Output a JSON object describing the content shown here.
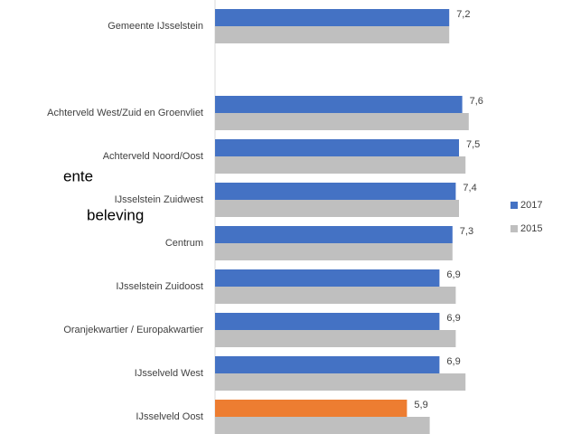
{
  "chart_data": {
    "type": "bar",
    "orientation": "horizontal",
    "fragments": [
      "ente",
      "beleving"
    ],
    "categories": [
      "Gemeente IJsselstein",
      "Achterveld West/Zuid en Groenvliet",
      "Achterveld  Noord/Oost",
      "IJsselstein Zuidwest",
      "Centrum",
      "IJsselstein Zuidoost",
      "Oranjekwartier / Europakwartier",
      "IJsselveld West",
      "IJsselveld Oost"
    ],
    "series": [
      {
        "name": "2017",
        "color": "#4472c4",
        "colors": [
          "#4472c4",
          "#4472c4",
          "#4472c4",
          "#4472c4",
          "#4472c4",
          "#4472c4",
          "#4472c4",
          "#4472c4",
          "#ed7d31"
        ],
        "values": [
          7.2,
          7.6,
          7.5,
          7.4,
          7.3,
          6.9,
          6.9,
          6.9,
          5.9
        ],
        "value_labels": [
          "7,2",
          "7,6",
          "7,5",
          "7,4",
          "7,3",
          "6,9",
          "6,9",
          "6,9",
          "5,9"
        ]
      },
      {
        "name": "2015",
        "color": "#bfbfbf",
        "values": [
          7.2,
          7.8,
          7.7,
          7.5,
          7.3,
          7.4,
          7.4,
          7.7,
          6.6
        ]
      }
    ],
    "legend": "right"
  }
}
